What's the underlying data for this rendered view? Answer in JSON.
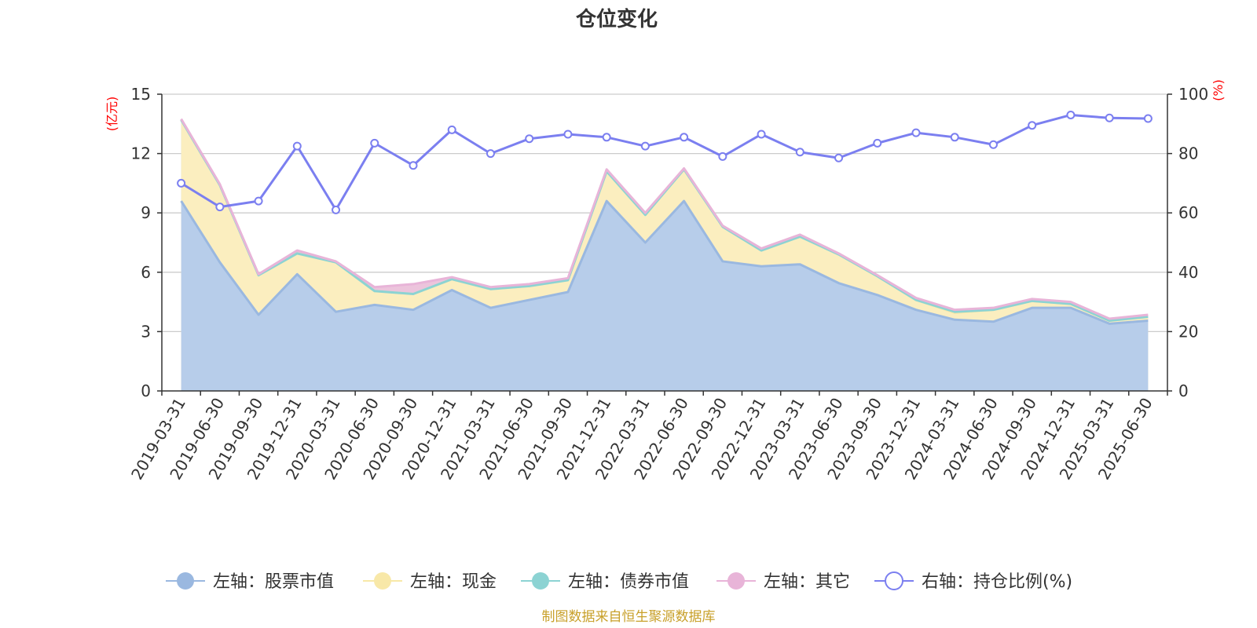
{
  "chart_data": {
    "type": "area",
    "title": "仓位变化",
    "left_unit": "(亿元)",
    "right_unit": "(%)",
    "categories": [
      "2019-03-31",
      "2019-06-30",
      "2019-09-30",
      "2019-12-31",
      "2020-03-31",
      "2020-06-30",
      "2020-09-30",
      "2020-12-31",
      "2021-03-31",
      "2021-06-30",
      "2021-09-30",
      "2021-12-31",
      "2022-03-31",
      "2022-06-30",
      "2022-09-30",
      "2022-12-31",
      "2023-03-31",
      "2023-06-30",
      "2023-09-30",
      "2023-12-31",
      "2024-03-31",
      "2024-06-30",
      "2024-09-30",
      "2024-12-31",
      "2025-03-31",
      "2025-06-30"
    ],
    "left_axis": {
      "min": 0,
      "max": 15,
      "ticks": [
        0,
        3,
        6,
        9,
        12,
        15
      ]
    },
    "right_axis": {
      "min": 0,
      "max": 100,
      "ticks": [
        0,
        20,
        40,
        60,
        80,
        100
      ]
    },
    "grid": true,
    "legend_position": "bottom",
    "series": [
      {
        "name": "左轴：股票市值",
        "axis": "left",
        "stack": true,
        "color": "#9ab8e0",
        "fill": "#b7cdea",
        "values": [
          9.6,
          6.5,
          3.85,
          5.9,
          4.0,
          4.35,
          4.1,
          5.1,
          4.2,
          4.6,
          5.0,
          9.6,
          7.5,
          9.6,
          6.55,
          6.3,
          6.4,
          5.45,
          4.85,
          4.1,
          3.6,
          3.5,
          4.2,
          4.2,
          3.4,
          3.55
        ]
      },
      {
        "name": "左轴：现金",
        "axis": "left",
        "stack": true,
        "color": "#f8e8a8",
        "fill": "#fbeebf",
        "values": [
          4.1,
          3.9,
          2.0,
          1.05,
          2.5,
          0.7,
          0.8,
          0.55,
          0.95,
          0.7,
          0.6,
          1.5,
          1.4,
          1.6,
          1.75,
          0.8,
          1.4,
          1.45,
          0.95,
          0.5,
          0.35,
          0.6,
          0.35,
          0.2,
          0.15,
          0.2
        ]
      },
      {
        "name": "左轴：债券市值",
        "axis": "left",
        "stack": true,
        "color": "#8cd3d3",
        "fill": "#a8dede",
        "values": [
          0,
          0,
          0,
          0,
          0,
          0,
          0,
          0,
          0,
          0,
          0,
          0,
          0,
          0,
          0,
          0,
          0,
          0,
          0,
          0,
          0.05,
          0,
          0,
          0,
          0,
          0
        ]
      },
      {
        "name": "左轴：其它",
        "axis": "left",
        "stack": true,
        "color": "#e8b4d8",
        "fill": "#ecc4dc",
        "values": [
          0.05,
          0.05,
          0.05,
          0.15,
          0.05,
          0.2,
          0.5,
          0.1,
          0.1,
          0.1,
          0.1,
          0.1,
          0.1,
          0.05,
          0.05,
          0.1,
          0.1,
          0.05,
          0.05,
          0.1,
          0.1,
          0.1,
          0.1,
          0.1,
          0.1,
          0.1
        ]
      },
      {
        "name": "右轴：持仓比例(%)",
        "axis": "right",
        "type": "line",
        "color": "#7b7ff0",
        "values": [
          70,
          62,
          64,
          82.5,
          61,
          83.5,
          76,
          88,
          80,
          85,
          86.5,
          85.5,
          82.5,
          85.5,
          79,
          86.5,
          80.5,
          78.5,
          83.5,
          87,
          85.5,
          83,
          89.5,
          93,
          92,
          91.8
        ]
      }
    ]
  },
  "source_note": "制图数据来自恒生聚源数据库"
}
